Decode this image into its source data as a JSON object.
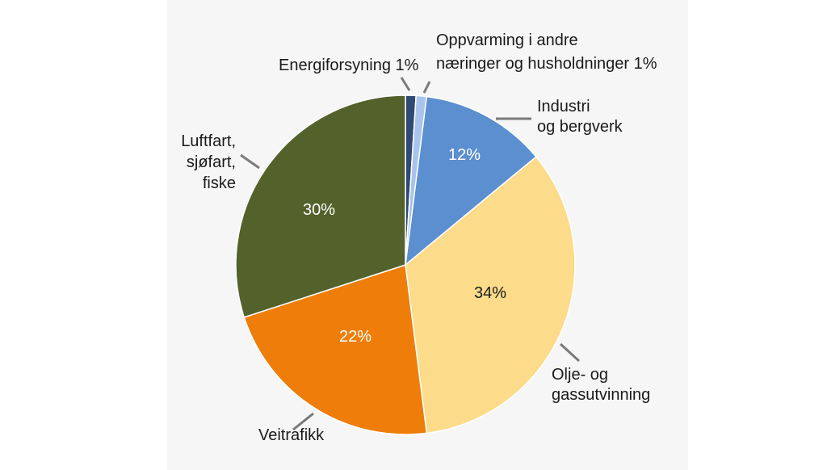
{
  "chart_data": {
    "type": "pie",
    "start": "top",
    "direction": "clockwise",
    "slices": [
      {
        "label_lines": [
          "Energiforsyning 1%"
        ],
        "value": 1,
        "color": "#2f4a73",
        "show_pct": false
      },
      {
        "label_lines": [
          "Oppvarming i andre",
          "næringer og husholdninger  1%"
        ],
        "value": 1,
        "color": "#a9c4ec",
        "show_pct": false
      },
      {
        "label_lines": [
          "Industri",
          "og bergverk"
        ],
        "value": 12,
        "pct_label": "12%",
        "color": "#5b8fd0",
        "pct_color": "#ffffff",
        "show_pct": true
      },
      {
        "label_lines": [
          "Olje- og",
          "gassutvinning"
        ],
        "value": 34,
        "pct_label": "34%",
        "color": "#fcdc8a",
        "pct_color": "#1a1a1a",
        "show_pct": true
      },
      {
        "label_lines": [
          "Veitrafikk"
        ],
        "value": 22,
        "pct_label": "22%",
        "color": "#ee7d0a",
        "pct_color": "#ffffff",
        "show_pct": true
      },
      {
        "label_lines": [
          "Luftfart,",
          "sjøfart,",
          "fiske"
        ],
        "value": 30,
        "pct_label": "30%",
        "color": "#53612b",
        "pct_color": "#ffffff",
        "show_pct": true
      }
    ],
    "leader_color": "#7a7a7a"
  }
}
